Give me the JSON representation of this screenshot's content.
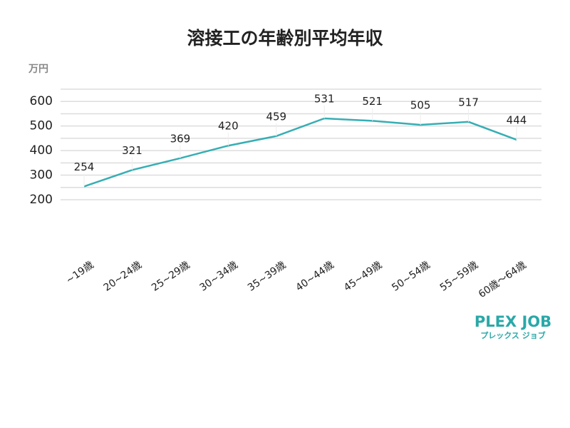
{
  "chart_data": {
    "type": "line",
    "title": "溶接工の年齢別平均年収",
    "y_unit": "万円",
    "categories": [
      "~19歳",
      "20~24歳",
      "25~29歳",
      "30~34歳",
      "35~39歳",
      "40~44歳",
      "45~49歳",
      "50~54歳",
      "55~59歳",
      "60歳～64歳"
    ],
    "values": [
      254,
      321,
      369,
      420,
      459,
      531,
      521,
      505,
      517,
      444
    ],
    "color": "#36aeb4",
    "ylim": [
      200,
      650
    ],
    "yticks": [
      200,
      300,
      400,
      500,
      600
    ],
    "minor_grid": [
      250,
      350,
      450,
      550,
      650
    ],
    "grid": true
  },
  "logo": {
    "name": "PLEX JOB",
    "kana": "プレックス ジョブ",
    "color": "#2aa8a8"
  }
}
